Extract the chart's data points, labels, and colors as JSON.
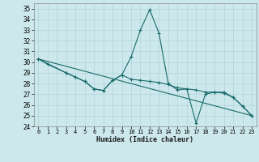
{
  "xlabel": "Humidex (Indice chaleur)",
  "xlim": [
    -0.5,
    23.5
  ],
  "ylim": [
    24,
    35.5
  ],
  "yticks": [
    24,
    25,
    26,
    27,
    28,
    29,
    30,
    31,
    32,
    33,
    34,
    35
  ],
  "xticks": [
    0,
    1,
    2,
    3,
    4,
    5,
    6,
    7,
    8,
    9,
    10,
    11,
    12,
    13,
    14,
    15,
    16,
    17,
    18,
    19,
    20,
    21,
    22,
    23
  ],
  "bg_color": "#cce8ec",
  "grid_color": "#b0d4d8",
  "line_color": "#1a6b6b",
  "series1_x": [
    0,
    1,
    3,
    4,
    5,
    6,
    7,
    8,
    9,
    10,
    11,
    12,
    13,
    14,
    15,
    16,
    17,
    18,
    19,
    20,
    21,
    22,
    23
  ],
  "series1_y": [
    30.3,
    29.8,
    29.0,
    28.6,
    28.2,
    27.5,
    27.35,
    28.3,
    28.8,
    30.5,
    33.0,
    34.9,
    32.7,
    28.0,
    27.4,
    27.5,
    24.3,
    27.0,
    27.2,
    27.2,
    26.7,
    25.9,
    25.0
  ],
  "series2_x": [
    0,
    3,
    4,
    5,
    6,
    7,
    8,
    9,
    10,
    11,
    12,
    13,
    14,
    15,
    16,
    17,
    18,
    19,
    20,
    21,
    22,
    23
  ],
  "series2_y": [
    30.3,
    29.0,
    28.6,
    28.2,
    27.5,
    27.35,
    28.3,
    28.8,
    28.4,
    28.3,
    28.2,
    28.1,
    27.9,
    27.6,
    27.5,
    27.4,
    27.2,
    27.2,
    27.1,
    26.7,
    25.9,
    25.0
  ],
  "trend_x": [
    0,
    23
  ],
  "trend_y": [
    30.3,
    25.0
  ]
}
